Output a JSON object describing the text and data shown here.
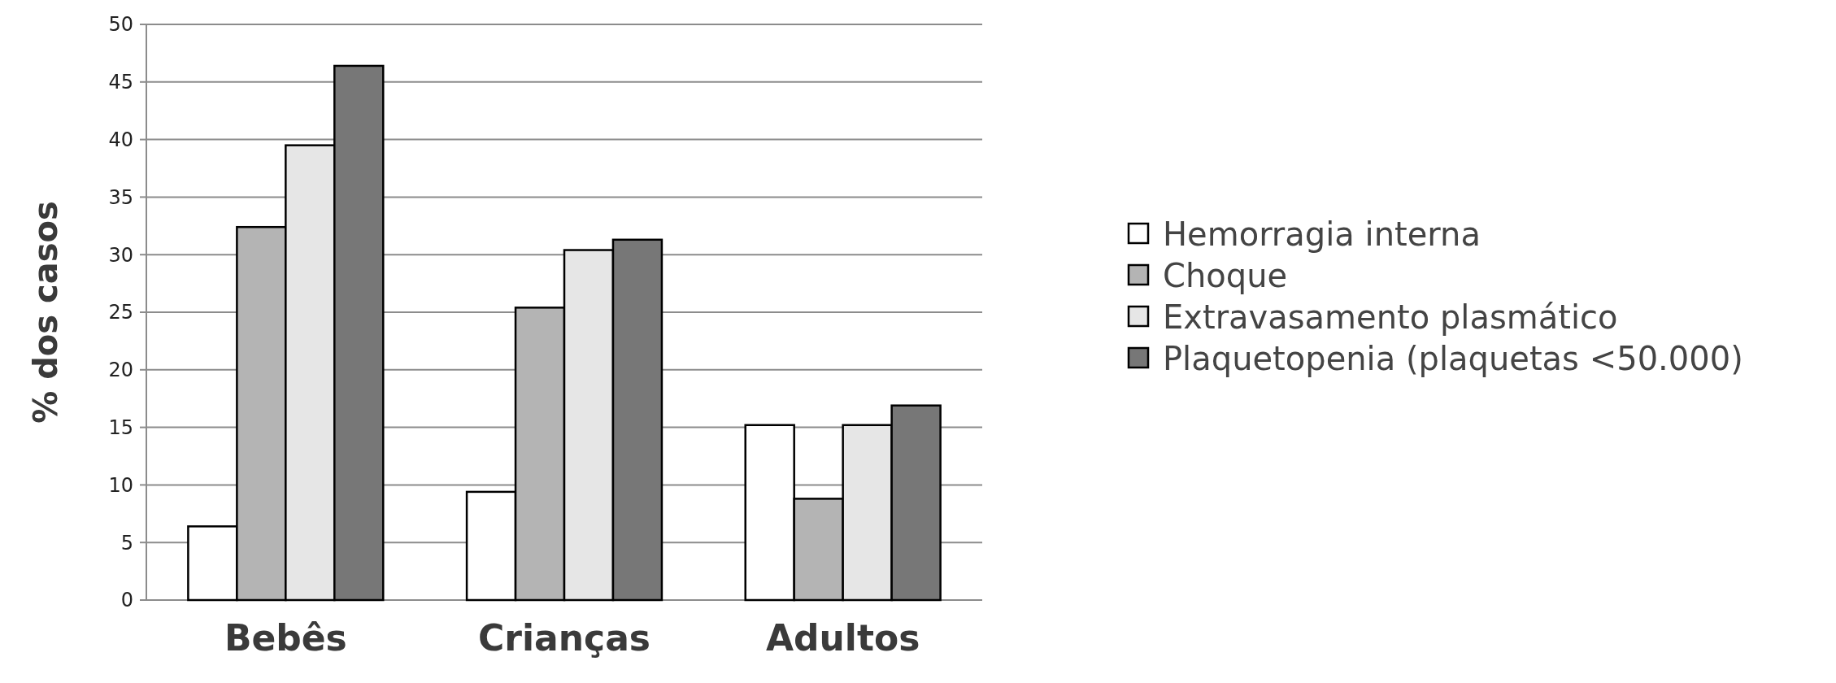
{
  "chart_data": {
    "type": "bar",
    "ylabel": "% dos casos",
    "categories": [
      "Bebês",
      "Crianças",
      "Adultos"
    ],
    "series": [
      {
        "name": "Hemorragia interna",
        "color": "#ffffff",
        "values": [
          6.4,
          9.4,
          15.2
        ]
      },
      {
        "name": "Choque",
        "color": "#b4b4b4",
        "values": [
          32.4,
          25.4,
          8.8
        ]
      },
      {
        "name": "Extravasamento plasmático",
        "color": "#e6e6e6",
        "values": [
          39.5,
          30.4,
          15.2
        ]
      },
      {
        "name": "Plaquetopenia (plaquetas <50.000)",
        "color": "#777777",
        "values": [
          46.4,
          31.3,
          16.9
        ]
      }
    ],
    "ylim": [
      0,
      50
    ],
    "yticks": [
      0,
      5,
      10,
      15,
      20,
      25,
      30,
      35,
      40,
      45,
      50
    ],
    "grid": "y",
    "legend": "right"
  }
}
